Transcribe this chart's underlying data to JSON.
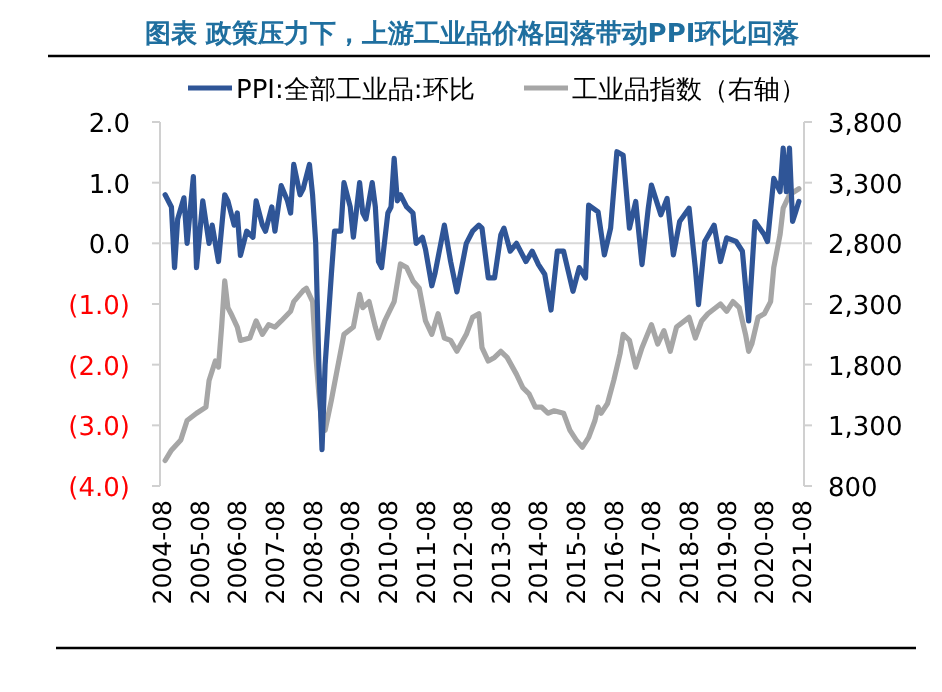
{
  "chart_data": {
    "type": "line",
    "title": "图表 政策压力下，上游工业品价格回落带动PPI环比回落",
    "legend": "top",
    "xlim": [
      "2004-08",
      "2021-08"
    ],
    "xticks": [
      "2004-08",
      "2005-08",
      "2006-08",
      "2007-08",
      "2008-08",
      "2009-08",
      "2010-08",
      "2011-08",
      "2012-08",
      "2013-08",
      "2014-08",
      "2015-08",
      "2016-08",
      "2017-08",
      "2018-08",
      "2019-08",
      "2020-08",
      "2021-08"
    ],
    "ylim": [
      -4,
      2
    ],
    "yticks": [
      {
        "value": 2,
        "label": "2.0"
      },
      {
        "value": 1,
        "label": "1.0"
      },
      {
        "value": 0,
        "label": "0.0"
      },
      {
        "value": -1,
        "label": "(1.0)"
      },
      {
        "value": -2,
        "label": "(2.0)"
      },
      {
        "value": -3,
        "label": "(3.0)"
      },
      {
        "value": -4,
        "label": "(4.0)"
      }
    ],
    "y2lim": [
      800,
      3800
    ],
    "y2ticks": [
      {
        "value": 3800,
        "label": "3,800"
      },
      {
        "value": 3300,
        "label": "3,300"
      },
      {
        "value": 2800,
        "label": "2,800"
      },
      {
        "value": 2300,
        "label": "2,300"
      },
      {
        "value": 1800,
        "label": "1,800"
      },
      {
        "value": 1300,
        "label": "1,300"
      },
      800
    ],
    "ref_lines": [
      {
        "axis": "y",
        "value": 0,
        "color": "#d9d9d9"
      }
    ],
    "series": [
      {
        "name": "PPI:全部工业品:环比",
        "color": "#2f5597",
        "x": [
          "2004-09",
          "2004-11",
          "2004-12",
          "2005-01",
          "2005-03",
          "2005-04",
          "2005-06",
          "2005-07",
          "2005-09",
          "2005-11",
          "2005-12",
          "2006-02",
          "2006-04",
          "2006-05",
          "2006-07",
          "2006-08",
          "2006-09",
          "2006-11",
          "2007-01",
          "2007-02",
          "2007-04",
          "2007-05",
          "2007-07",
          "2007-08",
          "2007-10",
          "2007-12",
          "2008-01",
          "2008-02",
          "2008-04",
          "2008-05",
          "2008-07",
          "2008-08",
          "2008-09",
          "2008-10",
          "2008-11",
          "2008-12",
          "2009-02",
          "2009-03",
          "2009-05",
          "2009-06",
          "2009-08",
          "2009-09",
          "2009-11",
          "2009-12",
          "2010-01",
          "2010-03",
          "2010-04",
          "2010-05",
          "2010-06",
          "2010-08",
          "2010-09",
          "2010-10",
          "2010-11",
          "2010-12",
          "2011-02",
          "2011-04",
          "2011-05",
          "2011-07",
          "2011-08",
          "2011-10",
          "2011-11",
          "2012-02",
          "2012-04",
          "2012-06",
          "2012-09",
          "2012-11",
          "2013-01",
          "2013-02",
          "2013-04",
          "2013-06",
          "2013-08",
          "2013-09",
          "2013-11",
          "2014-01",
          "2014-04",
          "2014-06",
          "2014-08",
          "2014-10",
          "2014-12",
          "2015-02",
          "2015-04",
          "2015-07",
          "2015-09",
          "2015-11",
          "2015-12",
          "2016-03",
          "2016-05",
          "2016-07",
          "2016-09",
          "2016-11",
          "2017-01",
          "2017-03",
          "2017-05",
          "2017-07",
          "2017-08",
          "2017-11",
          "2018-01",
          "2018-03",
          "2018-05",
          "2018-08",
          "2018-10",
          "2018-11",
          "2019-01",
          "2019-04",
          "2019-06",
          "2019-08",
          "2019-11",
          "2020-01",
          "2020-03",
          "2020-05",
          "2020-08",
          "2020-09",
          "2020-11",
          "2021-01",
          "2021-02",
          "2021-03",
          "2021-04",
          "2021-05",
          "2021-06",
          "2021-07"
        ],
        "values": [
          0.8,
          0.6,
          -0.4,
          0.4,
          0.75,
          0.0,
          1.1,
          -0.4,
          0.7,
          0.0,
          0.3,
          -0.3,
          0.8,
          0.7,
          0.3,
          0.5,
          -0.2,
          0.2,
          0.1,
          0.7,
          0.3,
          0.2,
          0.6,
          0.2,
          0.95,
          0.7,
          0.5,
          1.3,
          0.8,
          0.9,
          1.3,
          0.8,
          0.0,
          -2.0,
          -3.4,
          -2.0,
          -0.5,
          0.2,
          0.2,
          1.0,
          0.6,
          0.1,
          1.0,
          0.5,
          0.4,
          1.0,
          0.6,
          -0.3,
          -0.4,
          0.5,
          0.6,
          1.4,
          0.7,
          0.8,
          0.6,
          0.5,
          0.0,
          0.1,
          -0.1,
          -0.7,
          -0.5,
          0.3,
          -0.3,
          -0.8,
          0.0,
          0.2,
          0.3,
          0.25,
          -0.57,
          -0.57,
          0.14,
          0.25,
          -0.13,
          0.0,
          -0.3,
          -0.13,
          -0.35,
          -0.51,
          -1.1,
          -0.13,
          -0.13,
          -0.79,
          -0.4,
          -0.57,
          0.63,
          0.52,
          -0.19,
          0.25,
          1.51,
          1.45,
          0.25,
          0.69,
          -0.35,
          0.58,
          0.96,
          0.47,
          0.74,
          -0.19,
          0.36,
          0.58,
          -0.41,
          -1.01,
          0.03,
          0.3,
          -0.3,
          0.09,
          0.03,
          -0.13,
          -1.28,
          0.36,
          0.14,
          0.03,
          1.07,
          0.85,
          1.57,
          0.85,
          1.57,
          0.36,
          0.52,
          0.69
        ]
      },
      {
        "name": "工业品指数（右轴）",
        "color": "#a6a6a6",
        "axis": "y2",
        "x": [
          "2004-09",
          "2004-11",
          "2005-02",
          "2005-04",
          "2005-07",
          "2005-10",
          "2005-11",
          "2006-01",
          "2006-02",
          "2006-03",
          "2006-04",
          "2006-05",
          "2006-06",
          "2006-08",
          "2006-09",
          "2006-12",
          "2007-02",
          "2007-04",
          "2007-06",
          "2007-08",
          "2007-10",
          "2008-01",
          "2008-02",
          "2008-05",
          "2008-06",
          "2008-08",
          "2008-09",
          "2008-10",
          "2008-11",
          "2008-12",
          "2009-02",
          "2009-04",
          "2009-06",
          "2009-09",
          "2009-11",
          "2009-12",
          "2010-02",
          "2010-04",
          "2010-05",
          "2010-07",
          "2010-10",
          "2010-12",
          "2011-02",
          "2011-04",
          "2011-06",
          "2011-08",
          "2011-10",
          "2011-12",
          "2012-02",
          "2012-04",
          "2012-06",
          "2012-09",
          "2012-11",
          "2013-01",
          "2013-02",
          "2013-04",
          "2013-06",
          "2013-08",
          "2013-10",
          "2014-01",
          "2014-03",
          "2014-05",
          "2014-07",
          "2014-09",
          "2014-11",
          "2015-01",
          "2015-04",
          "2015-06",
          "2015-08",
          "2015-10",
          "2015-12",
          "2016-02",
          "2016-03",
          "2016-04",
          "2016-06",
          "2016-08",
          "2016-10",
          "2016-11",
          "2017-01",
          "2017-03",
          "2017-05",
          "2017-08",
          "2017-10",
          "2017-12",
          "2018-02",
          "2018-04",
          "2018-08",
          "2018-10",
          "2018-12",
          "2019-02",
          "2019-06",
          "2019-08",
          "2019-10",
          "2019-12",
          "2020-02",
          "2020-03",
          "2020-04",
          "2020-06",
          "2020-08",
          "2020-10",
          "2020-11",
          "2021-01",
          "2021-02",
          "2021-04",
          "2021-07"
        ],
        "values": [
          1010,
          1095,
          1180,
          1340,
          1400,
          1450,
          1670,
          1830,
          1780,
          2110,
          2490,
          2270,
          2220,
          2110,
          2000,
          2020,
          2160,
          2050,
          2130,
          2110,
          2160,
          2240,
          2320,
          2410,
          2430,
          2320,
          1890,
          1560,
          1290,
          1260,
          1510,
          1780,
          2050,
          2110,
          2380,
          2270,
          2320,
          2110,
          2020,
          2160,
          2320,
          2630,
          2600,
          2490,
          2430,
          2160,
          2050,
          2220,
          2020,
          2000,
          1910,
          2050,
          2190,
          2220,
          1940,
          1830,
          1860,
          1910,
          1860,
          1720,
          1610,
          1560,
          1450,
          1450,
          1400,
          1420,
          1400,
          1260,
          1180,
          1120,
          1200,
          1340,
          1450,
          1400,
          1480,
          1670,
          1890,
          2050,
          2000,
          1780,
          1940,
          2130,
          1970,
          2080,
          1910,
          2110,
          2190,
          2020,
          2160,
          2220,
          2300,
          2240,
          2320,
          2270,
          2050,
          1910,
          1970,
          2190,
          2220,
          2320,
          2600,
          2870,
          3090,
          3200,
          3250
        ]
      }
    ]
  }
}
